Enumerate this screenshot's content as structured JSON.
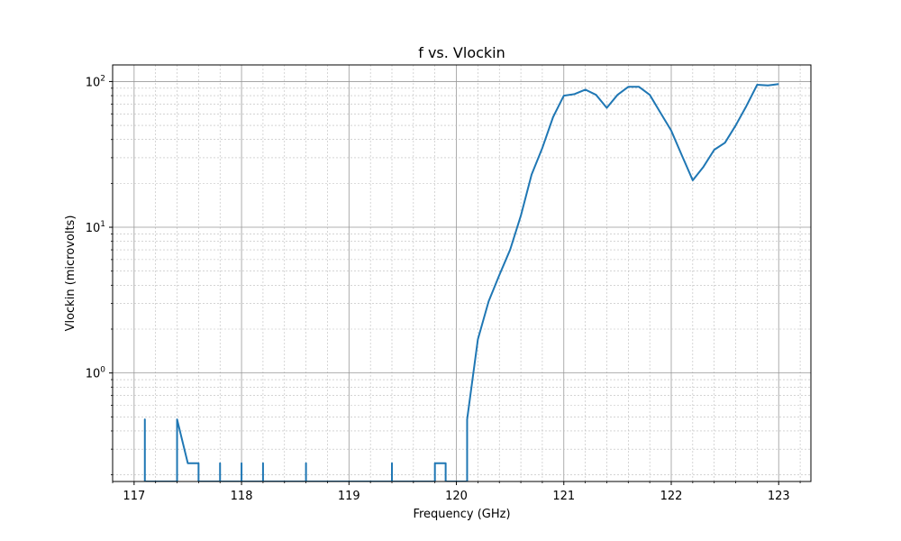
{
  "chart_data": {
    "type": "line",
    "title": "f vs. Vlockin",
    "xlabel": "Frequency (GHz)",
    "ylabel": "Vlockin (microvolts)",
    "xlim": [
      116.8,
      123.3
    ],
    "ylim": [
      0.18,
      130
    ],
    "yscale": "log",
    "grid": true,
    "color": "#1f77b4",
    "x_ticks": [
      117,
      118,
      119,
      120,
      121,
      122,
      123
    ],
    "x_tick_labels": [
      "117",
      "118",
      "119",
      "120",
      "121",
      "122",
      "123"
    ],
    "y_ticks": [
      1,
      10,
      100
    ],
    "series": [
      {
        "x": [
          117.1,
          117.1,
          117.1,
          117.4,
          117.4,
          117.5,
          117.6,
          117.6,
          117.8,
          117.8,
          117.8,
          118.0,
          118.0,
          118.0,
          118.2,
          118.2,
          118.2,
          118.6,
          118.6,
          118.6,
          119.4,
          119.4,
          119.4,
          119.8,
          119.8,
          119.9,
          119.9,
          120.1,
          120.1,
          120.2,
          120.3,
          120.4,
          120.5,
          120.6,
          120.7,
          120.8,
          120.9,
          121.0,
          121.1,
          121.2,
          121.3,
          121.4,
          121.5,
          121.6,
          121.7,
          121.8,
          121.9,
          122.0,
          122.1,
          122.2,
          122.3,
          122.4,
          122.5,
          122.6,
          122.7,
          122.8,
          122.9,
          123.0
        ],
        "y": [
          0.17,
          0.48,
          0.17,
          0.17,
          0.48,
          0.24,
          0.24,
          0.17,
          0.17,
          0.24,
          0.17,
          0.17,
          0.24,
          0.17,
          0.17,
          0.24,
          0.17,
          0.17,
          0.24,
          0.17,
          0.17,
          0.24,
          0.17,
          0.17,
          0.24,
          0.24,
          0.17,
          0.17,
          0.48,
          1.7,
          3.1,
          4.7,
          7.0,
          12.0,
          23.0,
          35.0,
          57.0,
          80.0,
          82.0,
          88.0,
          81.0,
          66.0,
          81.0,
          92.0,
          92.0,
          81.0,
          61.0,
          46.0,
          31.0,
          21.0,
          26.0,
          34.0,
          38.0,
          50.0,
          68.0,
          95.0,
          94.0,
          96.0
        ]
      }
    ]
  }
}
